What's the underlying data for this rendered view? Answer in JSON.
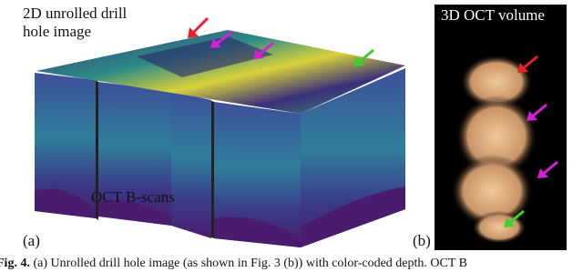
{
  "panel_a": {
    "label": "(a)",
    "top_label": [
      "2D unrolled drill",
      "hole image"
    ],
    "bottom_label": "OCT B-scans"
  },
  "panel_b": {
    "label": "(b)",
    "title": "3D OCT volume"
  },
  "caption": {
    "prefix": "Fig. 4.",
    "text": "(a) Unrolled drill hole image (as shown in Fig. 3 (b)) with color-coded depth. OCT B"
  }
}
